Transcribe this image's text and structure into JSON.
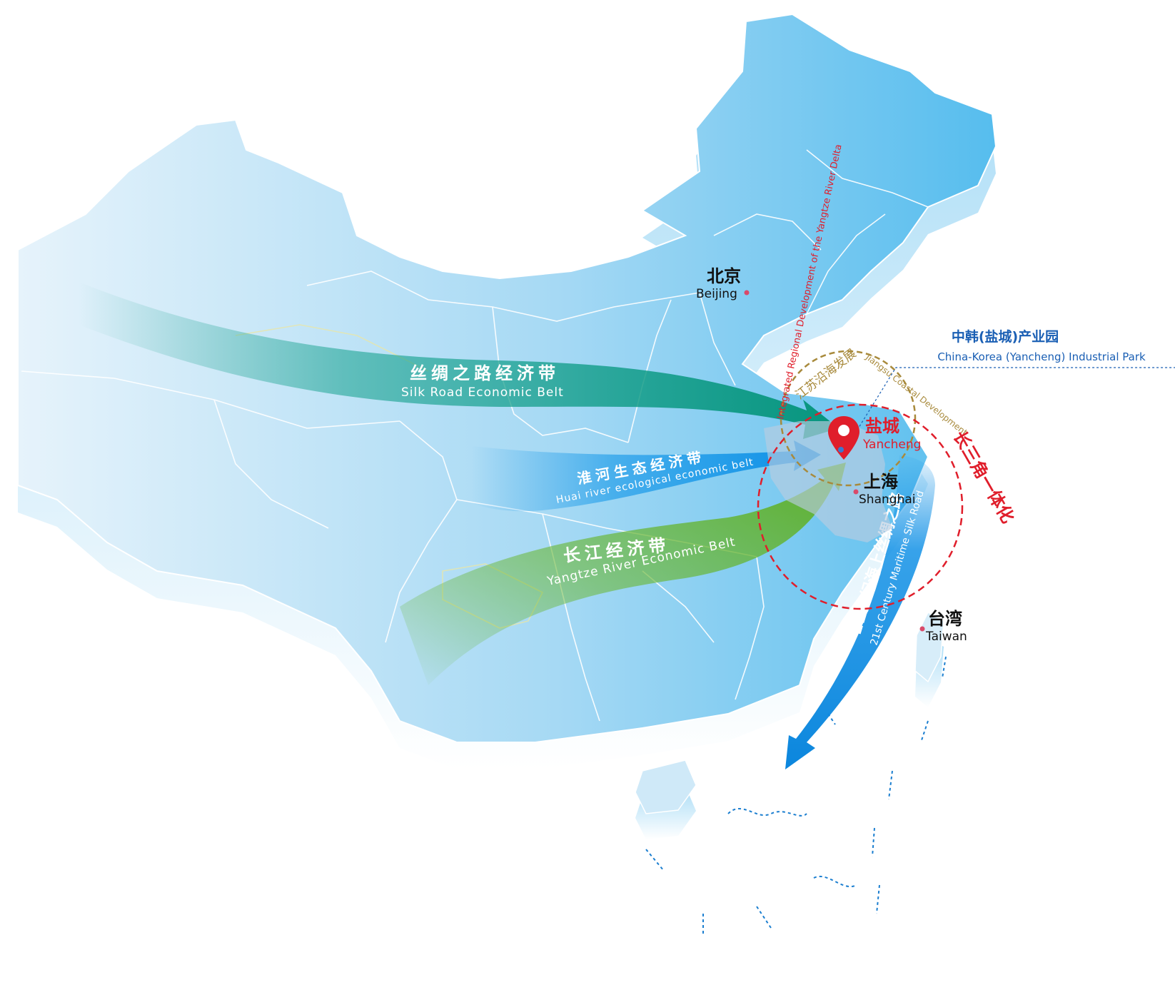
{
  "cities": {
    "beijing": {
      "cn": "北京",
      "en": "Beijing"
    },
    "yancheng": {
      "cn": "盐城",
      "en": "Yancheng"
    },
    "shanghai": {
      "cn": "上海",
      "en": "Shanghai"
    },
    "taiwan": {
      "cn": "台湾",
      "en": "Taiwan"
    }
  },
  "park": {
    "cn": "中韩(盐城)产业园",
    "en": "China-Korea (Yancheng) Industrial Park"
  },
  "arrows": {
    "silk_road": {
      "cn": "丝绸之路经济带",
      "en": "Silk Road Economic Belt"
    },
    "huai_river": {
      "cn": "淮河生态经济带",
      "en": "Huai river ecological economic belt"
    },
    "yangtze_belt": {
      "cn": "长江经济带",
      "en": "Yangtze River Economic Belt"
    },
    "maritime": {
      "cn": "21世纪海上丝绸之路",
      "en": "21st Century Maritime Silk Road"
    }
  },
  "circles": {
    "jiangsu": {
      "cn": "江苏沿海发展",
      "en": "Jiangsu Coastal Development"
    },
    "yangtze_delta": {
      "cn": "长三角一体化",
      "en": "Integrated Regional Development of the Yangtze River Delta"
    }
  },
  "colors": {
    "map_fill_light": "#dff0fb",
    "map_fill_dark": "#63c3ef",
    "silk_road": "#0e9c86",
    "huai_river": "#1196e8",
    "yangtze_belt": "#64b32e",
    "maritime": "#1492e6",
    "marker_red": "#e01e2b",
    "jiangsu_circle": "#a88a3c",
    "park_blue": "#1a5fb4"
  }
}
